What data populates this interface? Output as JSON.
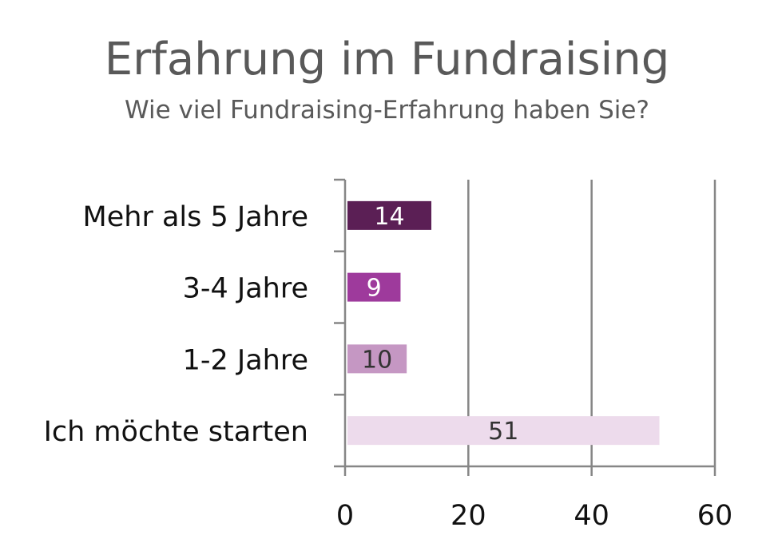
{
  "chart_data": {
    "type": "bar",
    "orientation": "horizontal",
    "title": "Erfahrung im Fundraising",
    "subtitle": "Wie viel Fundraising-Erfahrung haben Sie?",
    "categories": [
      "Mehr als 5 Jahre",
      "3-4 Jahre",
      "1-2 Jahre",
      "Ich möchte starten"
    ],
    "values": [
      14,
      9,
      10,
      51
    ],
    "bar_colors": [
      "#5b1f55",
      "#9e3a9c",
      "#c597c3",
      "#eddbec"
    ],
    "value_label_colors": [
      "#ffffff",
      "#ffffff",
      "#333333",
      "#333333"
    ],
    "xlim": [
      0,
      60
    ],
    "xticks": [
      0,
      20,
      40,
      60
    ],
    "xlabel": "",
    "ylabel": "",
    "grid": "vertical",
    "legend": "none"
  }
}
